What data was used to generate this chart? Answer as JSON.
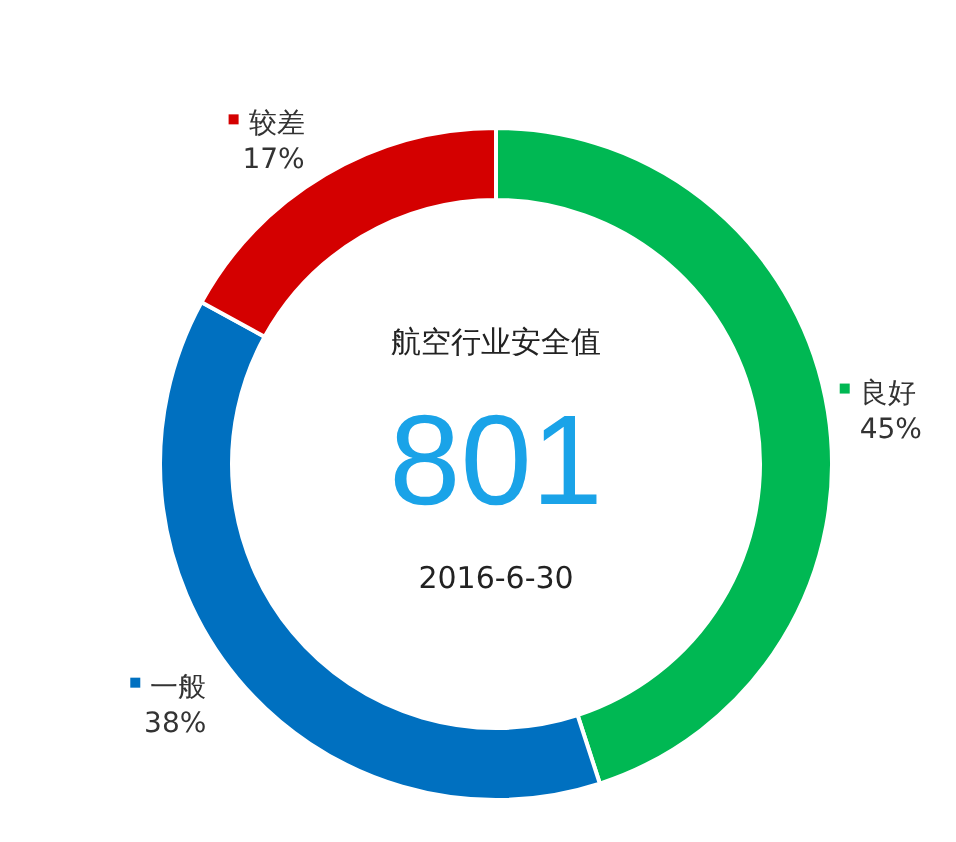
{
  "chart_data": {
    "type": "donut",
    "title": "航空行业安全值",
    "categories": [
      "良好",
      "一般",
      "较差"
    ],
    "values": [
      45,
      38,
      17
    ],
    "colors": [
      "#00b853",
      "#0070c0",
      "#d40000"
    ],
    "value_labels": [
      "45%",
      "38%",
      "17%"
    ],
    "annotations": [
      "801",
      "2016-6-30"
    ],
    "legend": "right"
  }
}
